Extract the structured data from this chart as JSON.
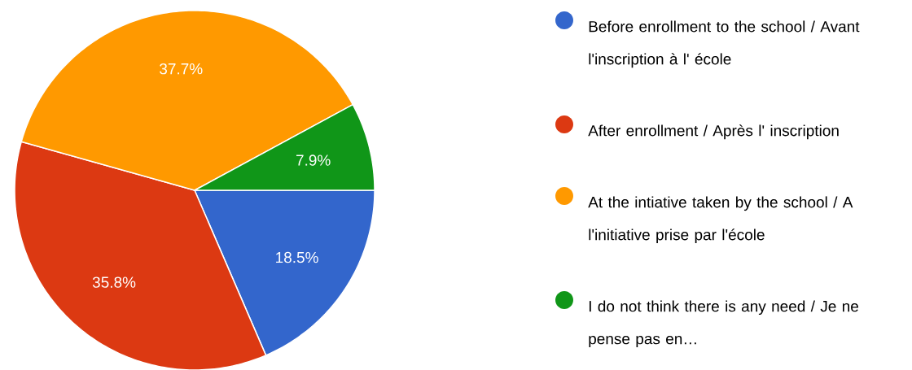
{
  "chart_data": {
    "type": "pie",
    "categories": [
      "Before enrollment to the school / Avant l'inscription à l' école",
      "After enrollment / Après l' inscription",
      "At the intiative taken by the school / A l'initiative prise par l'école",
      "I do not think there is any need / Je ne pense pas en…"
    ],
    "values": [
      18.5,
      35.8,
      37.7,
      7.9
    ],
    "value_labels": [
      "18.5%",
      "35.8%",
      "37.7%",
      "7.9%"
    ],
    "colors": [
      "#3366cc",
      "#dc3912",
      "#ff9900",
      "#109618"
    ],
    "legend": "right"
  }
}
